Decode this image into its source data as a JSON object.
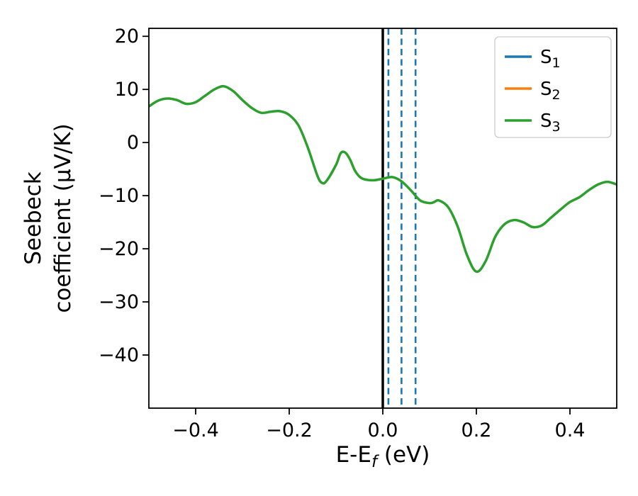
{
  "chart_data": {
    "type": "line",
    "title": "",
    "xlabel": {
      "pre": "E-E",
      "sub": "f",
      "post": " (eV)"
    },
    "ylabel_lines": [
      "Seebeck",
      "coefficient  (μV/K)"
    ],
    "xlim": [
      -0.5,
      0.5
    ],
    "ylim": [
      -50,
      21.5
    ],
    "xticks": [
      -0.4,
      -0.2,
      0.0,
      0.2,
      0.4
    ],
    "xtick_labels": [
      "−0.4",
      "−0.2",
      "0.0",
      "0.2",
      "0.4"
    ],
    "yticks": [
      20,
      10,
      0,
      -10,
      -20,
      -30,
      -40
    ],
    "ytick_labels": [
      "20",
      "10",
      "0",
      "−10",
      "−20",
      "−30",
      "−40"
    ],
    "grid": false,
    "legend_position": "upper right",
    "vline_solid": {
      "x": 0.0,
      "color": "#000000"
    },
    "vlines_dashed": {
      "xs": [
        0.012,
        0.04,
        0.07
      ],
      "color": "#1f77b4"
    },
    "legend": [
      {
        "pre": "S",
        "sub": "1",
        "color": "#1f77b4"
      },
      {
        "pre": "S",
        "sub": "2",
        "color": "#ff7f0e"
      },
      {
        "pre": "S",
        "sub": "3",
        "color": "#2ca02c"
      }
    ],
    "series": [
      {
        "name": "S3",
        "color": "#2ca02c",
        "points": [
          [
            -0.5,
            6.8
          ],
          [
            -0.48,
            7.9
          ],
          [
            -0.46,
            8.3
          ],
          [
            -0.44,
            8.0
          ],
          [
            -0.42,
            7.3
          ],
          [
            -0.4,
            7.6
          ],
          [
            -0.38,
            8.8
          ],
          [
            -0.36,
            10.0
          ],
          [
            -0.34,
            10.6
          ],
          [
            -0.32,
            9.7
          ],
          [
            -0.3,
            8.0
          ],
          [
            -0.28,
            6.5
          ],
          [
            -0.26,
            5.6
          ],
          [
            -0.24,
            5.8
          ],
          [
            -0.22,
            5.9
          ],
          [
            -0.2,
            5.2
          ],
          [
            -0.18,
            3.2
          ],
          [
            -0.16,
            -1.0
          ],
          [
            -0.14,
            -6.2
          ],
          [
            -0.13,
            -7.6
          ],
          [
            -0.12,
            -7.2
          ],
          [
            -0.1,
            -4.2
          ],
          [
            -0.09,
            -2.0
          ],
          [
            -0.08,
            -1.9
          ],
          [
            -0.07,
            -3.2
          ],
          [
            -0.06,
            -5.2
          ],
          [
            -0.05,
            -6.4
          ],
          [
            -0.04,
            -6.9
          ],
          [
            -0.02,
            -7.1
          ],
          [
            0.0,
            -6.8
          ],
          [
            0.02,
            -6.5
          ],
          [
            0.04,
            -7.3
          ],
          [
            0.06,
            -9.0
          ],
          [
            0.08,
            -10.9
          ],
          [
            0.1,
            -11.4
          ],
          [
            0.11,
            -11.2
          ],
          [
            0.12,
            -10.9
          ],
          [
            0.14,
            -12.2
          ],
          [
            0.16,
            -15.8
          ],
          [
            0.18,
            -21.2
          ],
          [
            0.2,
            -24.3
          ],
          [
            0.22,
            -22.3
          ],
          [
            0.24,
            -17.8
          ],
          [
            0.26,
            -15.4
          ],
          [
            0.28,
            -14.6
          ],
          [
            0.3,
            -15.0
          ],
          [
            0.32,
            -15.9
          ],
          [
            0.34,
            -15.6
          ],
          [
            0.36,
            -14.1
          ],
          [
            0.38,
            -12.6
          ],
          [
            0.4,
            -11.2
          ],
          [
            0.42,
            -10.3
          ],
          [
            0.44,
            -9.0
          ],
          [
            0.46,
            -7.9
          ],
          [
            0.48,
            -7.4
          ],
          [
            0.5,
            -7.9
          ]
        ]
      }
    ]
  }
}
